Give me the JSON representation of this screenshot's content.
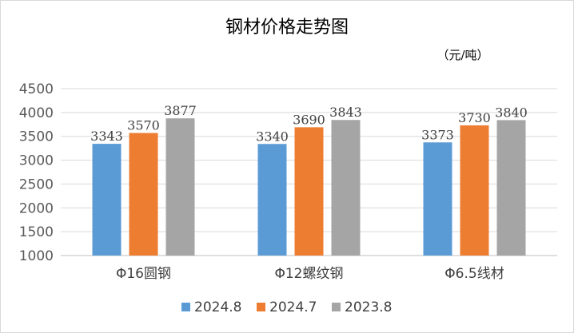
{
  "chart_data": {
    "type": "bar",
    "title": "钢材价格走势图",
    "unit": "（元/吨）",
    "categories": [
      "Φ16圆钢",
      "Φ12螺纹钢",
      "Φ6.5线材"
    ],
    "series": [
      {
        "name": "2024.8",
        "color": "#5B9BD5",
        "values": [
          3343,
          3340,
          3373
        ]
      },
      {
        "name": "2024.7",
        "color": "#ED7D31",
        "values": [
          3570,
          3690,
          3730
        ]
      },
      {
        "name": "2023.8",
        "color": "#A5A5A5",
        "values": [
          3877,
          3843,
          3840
        ]
      }
    ],
    "ylim": [
      1000,
      4500
    ],
    "yticks": [
      1000,
      1500,
      2000,
      2500,
      3000,
      3500,
      4000,
      4500
    ],
    "grid": true,
    "legend": "bottom"
  }
}
